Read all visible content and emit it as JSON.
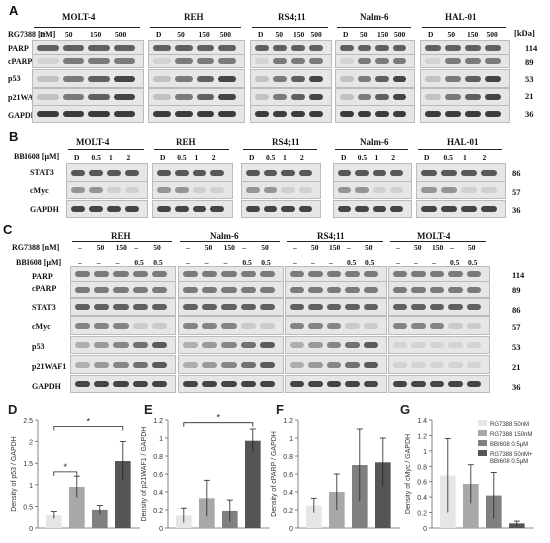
{
  "panels": {
    "A": {
      "label": "A",
      "treatment_label": "RG7388 [nM]",
      "doses": [
        "D",
        "50",
        "150",
        "500"
      ],
      "cell_lines": [
        "MOLT-4",
        "REH",
        "RS4;11",
        "Nalm-6",
        "HAL-01"
      ],
      "rows": [
        "PARP",
        "cPARP",
        "p53",
        "p21WAF1",
        "GAPDH"
      ],
      "kda_header": "[kDa]",
      "kda": [
        "114",
        "89",
        "53",
        "21",
        "36"
      ]
    },
    "B": {
      "label": "B",
      "treatment_label": "BBI608 [μM]",
      "doses": [
        "D",
        "0.5",
        "1",
        "2"
      ],
      "cell_lines": [
        "MOLT-4",
        "REH",
        "RS4;11",
        "Nalm-6",
        "HAL-01"
      ],
      "rows": [
        "STAT3",
        "cMyc",
        "GAPDH"
      ],
      "kda": [
        "86",
        "57",
        "36"
      ]
    },
    "C": {
      "label": "C",
      "treatment_labels": [
        "RG7388 [nM]",
        "BBI608 [μM]"
      ],
      "rg_doses": [
        "–",
        "50",
        "150",
        "–",
        "50"
      ],
      "bbi_doses": [
        "–",
        "–",
        "–",
        "0.5",
        "0.5"
      ],
      "cell_lines": [
        "REH",
        "Nalm-6",
        "RS4;11",
        "MOLT-4"
      ],
      "rows": [
        "PARP",
        "cPARP",
        "STAT3",
        "cMyc",
        "p53",
        "p21WAF1",
        "GAPDH"
      ],
      "kda": [
        "114",
        "89",
        "86",
        "57",
        "53",
        "21",
        "36"
      ]
    }
  },
  "legend": [
    "RG7388 50nM",
    "RG7388 150nM",
    "BBI608 0.5μM",
    "RG7388 50nM+ BBI608 0.5μM"
  ],
  "colors": [
    "#e6e6e6",
    "#a8a8a8",
    "#808080",
    "#555555"
  ],
  "chart_data": [
    {
      "label": "D",
      "type": "bar",
      "ylabel": "Density of p53 / GAPDH",
      "ylim": [
        0,
        2.5
      ],
      "yticks": [
        "0",
        "0.5",
        "1",
        "1.5",
        "2",
        "2.5"
      ],
      "values": [
        0.3,
        0.95,
        0.42,
        1.55
      ],
      "errors": [
        0.08,
        0.25,
        0.1,
        0.45
      ],
      "significance": [
        "*",
        "*"
      ]
    },
    {
      "label": "E",
      "type": "bar",
      "ylabel": "Density of p21WAF1 / GAPDH",
      "ylim": [
        0,
        1.2
      ],
      "yticks": [
        "0",
        "0.2",
        "0.4",
        "0.6",
        "0.8",
        "1",
        "1.2"
      ],
      "values": [
        0.14,
        0.33,
        0.19,
        0.97
      ],
      "errors": [
        0.08,
        0.2,
        0.12,
        0.13
      ],
      "significance": [
        "*"
      ]
    },
    {
      "label": "F",
      "type": "bar",
      "ylabel": "Density of cPARP / GAPDH",
      "ylim": [
        0,
        1.2
      ],
      "yticks": [
        "0",
        "0.2",
        "0.4",
        "0.6",
        "0.8",
        "1",
        "1.2"
      ],
      "values": [
        0.25,
        0.4,
        0.7,
        0.73
      ],
      "errors": [
        0.08,
        0.2,
        0.4,
        0.27
      ],
      "significance": []
    },
    {
      "label": "G",
      "type": "bar",
      "ylabel": "Density of cMyc / GAPDH",
      "ylim": [
        0,
        1.4
      ],
      "yticks": [
        "0",
        "0.2",
        "0.4",
        "0.6",
        "0.8",
        "1",
        "1.2",
        "1.4"
      ],
      "values": [
        0.68,
        0.57,
        0.42,
        0.06
      ],
      "errors": [
        0.48,
        0.25,
        0.3,
        0.03
      ],
      "significance": []
    }
  ]
}
